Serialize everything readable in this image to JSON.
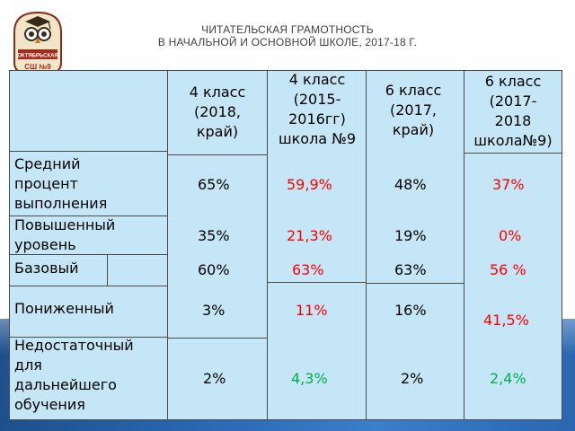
{
  "title": {
    "line1": "ЧИТАТЕЛЬСКАЯ ГРАМОТНОСТЬ",
    "line2": "В НАЧАЛЬНОЙ И ОСНОВНОЙ ШКОЛЕ, 2017-18 Г."
  },
  "logo": {
    "text1": "ОКТЯБРЬСКАЯ",
    "text2": "СШ №9"
  },
  "table": {
    "columns": [
      [
        "4 класс",
        "(2018,",
        "край)"
      ],
      [
        "4 класс",
        "(2015-",
        "2016гг)",
        "школа №9"
      ],
      [
        "6 класс",
        "(2017,",
        "край)"
      ],
      [
        "6 класс",
        "(2017-",
        "2018",
        "школа№9)"
      ]
    ],
    "rows": [
      {
        "label": [
          "Средний",
          "процент",
          "выполнения"
        ],
        "values": [
          "65%",
          "59,9%",
          "48%",
          "37%"
        ]
      },
      {
        "label": [
          "Повышенный",
          "уровень"
        ],
        "values": [
          "35%",
          "21,3%",
          "19%",
          "0%"
        ]
      },
      {
        "label": [
          "Базовый"
        ],
        "values": [
          "60%",
          "63%",
          "63%",
          "56 %"
        ]
      },
      {
        "label": [
          "Пониженный"
        ],
        "values": [
          "3%",
          "11%",
          "16%",
          "41,5%"
        ]
      },
      {
        "label": [
          "Недостаточный",
          "для",
          "дальнейшего",
          "обучения"
        ],
        "values": [
          "2%",
          "4,3%",
          "2%",
          "2,4%"
        ]
      }
    ]
  },
  "colors": {
    "table_bg": "#c5e6f6",
    "red": "#ff0000",
    "green": "#00b050",
    "title": "#404040",
    "strip": "#2a67b0"
  }
}
